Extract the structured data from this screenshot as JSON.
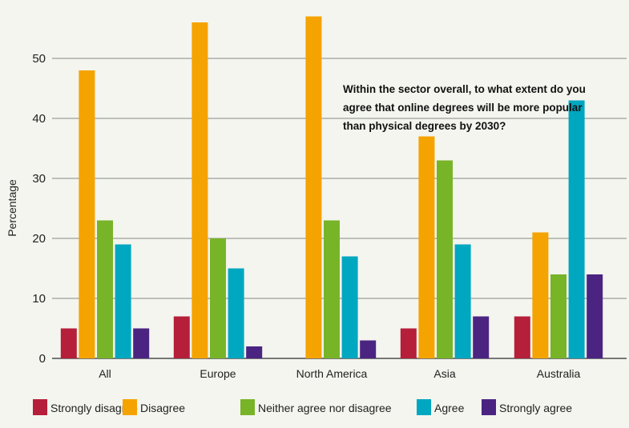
{
  "chart_data": {
    "type": "bar",
    "title": "Within the sector overall, to what extent do you agree that online degrees will be more popular than physical degrees by 2030?",
    "title_lines": [
      "Within the sector overall, to what extent do you",
      "agree that online degrees will be more popular",
      "than physical degrees by 2030?"
    ],
    "xlabel": "",
    "ylabel": "Percentage",
    "ylim": [
      0,
      57
    ],
    "yticks": [
      0,
      10,
      20,
      30,
      40,
      50
    ],
    "grid": true,
    "legend_position": "bottom",
    "categories": [
      "All",
      "Europe",
      "North America",
      "Asia",
      "Australia"
    ],
    "series": [
      {
        "name": "Strongly disagree",
        "color": "#b51f3a",
        "values": [
          5,
          7,
          0,
          5,
          7
        ]
      },
      {
        "name": "Disagree",
        "color": "#f5a300",
        "values": [
          48,
          56,
          57,
          37,
          21
        ]
      },
      {
        "name": "Neither agree nor disagree",
        "color": "#78b428",
        "values": [
          23,
          20,
          23,
          33,
          14
        ]
      },
      {
        "name": "Agree",
        "color": "#00a7c0",
        "values": [
          19,
          15,
          17,
          19,
          43
        ]
      },
      {
        "name": "Strongly agree",
        "color": "#4b2482",
        "values": [
          5,
          2,
          3,
          7,
          14
        ]
      }
    ]
  }
}
